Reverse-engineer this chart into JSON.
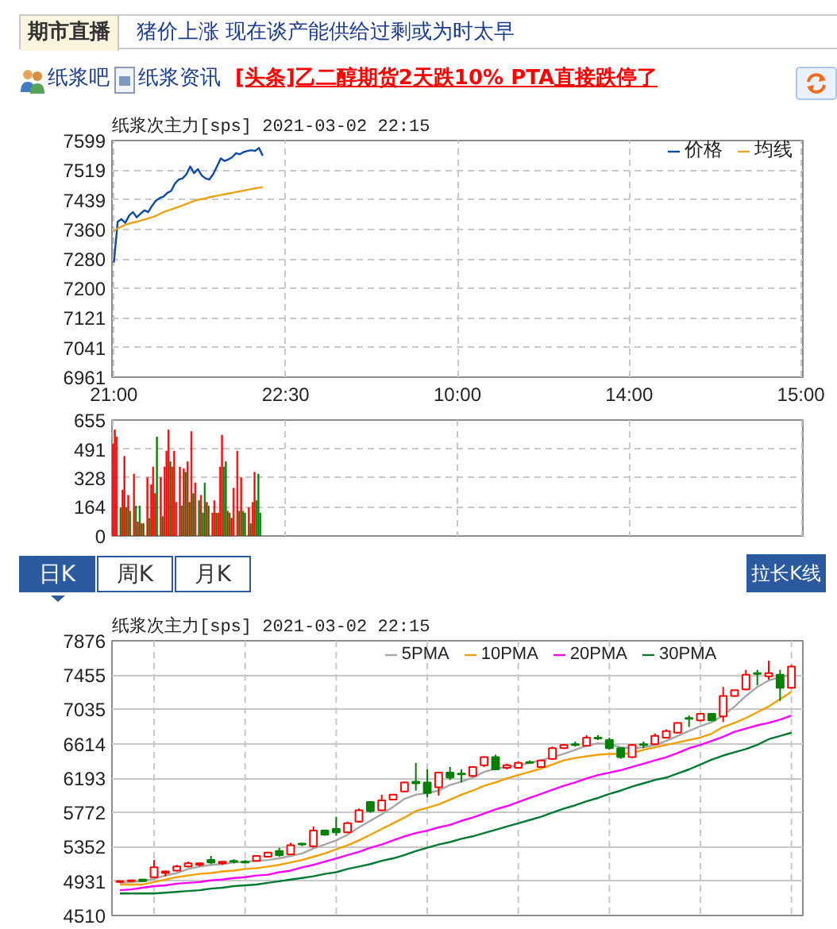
{
  "chart_data": [
    {
      "type": "other",
      "annotations": [
        "期市直播",
        "猪价上涨 现在谈产能供给过剩或为时太早",
        "纸浆吧",
        "纸浆资讯",
        "[头条]乙二醇期货2天跌10% PTA直接跌停了"
      ]
    },
    {
      "type": "line",
      "title": "纸浆次主力[sps] 2021-03-02 22:15",
      "categories": [
        "21:00",
        null,
        null,
        null,
        null,
        null,
        null,
        null,
        null,
        null,
        null,
        null,
        null,
        null,
        null,
        null,
        null,
        null,
        null,
        null,
        null,
        null,
        null,
        null,
        null,
        null,
        null,
        null,
        null,
        null,
        null,
        null,
        null,
        null,
        null,
        null,
        null,
        null,
        null,
        null,
        null,
        null,
        null,
        null,
        null,
        "22:30",
        null,
        null,
        null,
        null,
        null,
        null,
        null,
        null,
        null,
        null,
        null,
        null,
        null,
        null,
        null,
        null,
        null,
        null,
        null,
        null,
        null,
        null,
        null,
        null,
        null,
        null,
        null,
        null,
        null,
        null,
        null,
        null,
        null,
        null,
        null,
        null,
        null,
        null,
        null,
        null,
        null,
        null,
        null,
        null,
        "10:00",
        null,
        null,
        null,
        null,
        null,
        null,
        null,
        null,
        null,
        null,
        null,
        null,
        null,
        null,
        null,
        null,
        null,
        null,
        null,
        null,
        null,
        null,
        null,
        null,
        null,
        null,
        null,
        null,
        null,
        null,
        null,
        null,
        null,
        null,
        null,
        null,
        null,
        null,
        null,
        null,
        null,
        null,
        null,
        null,
        "14:00",
        null,
        null,
        null,
        null,
        null,
        null,
        null,
        null,
        null,
        null,
        null,
        null,
        null,
        null,
        null,
        null,
        null,
        null,
        null,
        null,
        null,
        null,
        null,
        null,
        null,
        null,
        null,
        null,
        null,
        null,
        null,
        null,
        null,
        null,
        null,
        null,
        null,
        null,
        null,
        null,
        null,
        null,
        null,
        null,
        "15:00"
      ],
      "ylim": [
        6961,
        7599
      ],
      "yticks": [
        6961,
        7041,
        7121,
        7200,
        7280,
        7360,
        7439,
        7519,
        7599
      ],
      "grid": true,
      "legend": "top right",
      "series": [
        {
          "name": "价格",
          "color": "#0b4aa8",
          "values": [
            7270,
            7380,
            7387,
            7377,
            7397,
            7406,
            7392,
            7402,
            7411,
            7406,
            7423,
            7437,
            7444,
            7448,
            7458,
            7463,
            7483,
            7494,
            7497,
            7508,
            7529,
            7511,
            7522,
            7505,
            7497,
            7494,
            7508,
            7529,
            7551,
            7544,
            7548,
            7554,
            7565,
            7562,
            7568,
            7571,
            7573,
            7571,
            7579,
            7558,
            null,
            null,
            null,
            null,
            null,
            null,
            null,
            null,
            null,
            null,
            null,
            null,
            null,
            null,
            null,
            null,
            null,
            null,
            null,
            null,
            null,
            null,
            null,
            null,
            null,
            null,
            null,
            null,
            null,
            null,
            null,
            null,
            null,
            null,
            null,
            null,
            null,
            null,
            null,
            null,
            null,
            null,
            null,
            null,
            null,
            null,
            null,
            null,
            null,
            null,
            null,
            null,
            null,
            null,
            null,
            null,
            null,
            null,
            null,
            null,
            null,
            null,
            null,
            null,
            null,
            null,
            null,
            null,
            null,
            null,
            null,
            null,
            null,
            null,
            null,
            null,
            null,
            null,
            null,
            null,
            null,
            null,
            null,
            null,
            null,
            null,
            null,
            null,
            null,
            null,
            null,
            null,
            null,
            null,
            null,
            null,
            null,
            null,
            null,
            null,
            null,
            null,
            null,
            null,
            null,
            null,
            null,
            null,
            null,
            null,
            null,
            null,
            null,
            null,
            null,
            null,
            null,
            null,
            null,
            null,
            null,
            null,
            null,
            null,
            null,
            null,
            null,
            null,
            null,
            null,
            null,
            null,
            null,
            null,
            null,
            null,
            null,
            null,
            null,
            null,
            null
          ]
        },
        {
          "name": "均线",
          "color": "#e8a317",
          "values": [
            7355,
            7362,
            7367,
            7372,
            7375,
            7378,
            7380,
            7383,
            7386,
            7389,
            7392,
            7396,
            7401,
            7406,
            7410,
            7413,
            7417,
            7420,
            7424,
            7428,
            7432,
            7436,
            7439,
            7441,
            7443,
            7446,
            7448,
            7450,
            7452,
            7454,
            7456,
            7458,
            7460,
            7462,
            7464,
            7466,
            7468,
            7470,
            7472,
            7473,
            null,
            null,
            null,
            null,
            null,
            null,
            null,
            null,
            null,
            null,
            null,
            null,
            null,
            null,
            null,
            null,
            null,
            null,
            null,
            null,
            null,
            null,
            null,
            null,
            null,
            null,
            null,
            null,
            null,
            null,
            null,
            null,
            null,
            null,
            null,
            null,
            null,
            null,
            null,
            null,
            null,
            null,
            null,
            null,
            null,
            null,
            null,
            null,
            null,
            null,
            null,
            null,
            null,
            null,
            null,
            null,
            null,
            null,
            null,
            null,
            null,
            null,
            null,
            null,
            null,
            null,
            null,
            null,
            null,
            null,
            null,
            null,
            null,
            null,
            null,
            null,
            null,
            null,
            null,
            null,
            null,
            null,
            null,
            null,
            null,
            null,
            null,
            null,
            null,
            null,
            null,
            null,
            null,
            null,
            null,
            null,
            null,
            null,
            null,
            null,
            null,
            null,
            null,
            null,
            null,
            null,
            null,
            null,
            null,
            null,
            null,
            null,
            null,
            null,
            null,
            null,
            null,
            null,
            null,
            null,
            null,
            null,
            null,
            null,
            null,
            null,
            null,
            null,
            null,
            null,
            null,
            null,
            null,
            null,
            null,
            null,
            null,
            null,
            null,
            null,
            null
          ]
        }
      ]
    },
    {
      "type": "bar",
      "categories": [
        null,
        null,
        null,
        null,
        null,
        null,
        null,
        null,
        null,
        null,
        null,
        null,
        null,
        null,
        null,
        null,
        null,
        null,
        null,
        null,
        null,
        null,
        null,
        null,
        null,
        null,
        null,
        null,
        null,
        null,
        null,
        null,
        null,
        null,
        null,
        null,
        null,
        null,
        null,
        null,
        null,
        null,
        null,
        null,
        null,
        null,
        null,
        null,
        null,
        null,
        null,
        null,
        null,
        null,
        null,
        null,
        null,
        null,
        null,
        null,
        null,
        null,
        null,
        null,
        null,
        null,
        null,
        null,
        null,
        null,
        null,
        null,
        null,
        null,
        null,
        null,
        null,
        null,
        null,
        null,
        null,
        null,
        null,
        null,
        null,
        null,
        null,
        null,
        null,
        null,
        null,
        null,
        null,
        null,
        null,
        null,
        null,
        null,
        null,
        null,
        null,
        null,
        null,
        null,
        null,
        null,
        null,
        null,
        null,
        null,
        null,
        null,
        null,
        null,
        null,
        null,
        null,
        null,
        null,
        null,
        null,
        null,
        null,
        null,
        null,
        null,
        null,
        null,
        null,
        null,
        null,
        null,
        null,
        null,
        null,
        null,
        null,
        null,
        null,
        null,
        null,
        null,
        null,
        null,
        null,
        null,
        null,
        null,
        null,
        null,
        null,
        null,
        null,
        null,
        null,
        null,
        null,
        null,
        null,
        null,
        null,
        null,
        null,
        null,
        null,
        null,
        null,
        null,
        null,
        null,
        null,
        null,
        null,
        null,
        null,
        null,
        null,
        null,
        null,
        null,
        null,
        null,
        null,
        null,
        null,
        null,
        null,
        null,
        null,
        null,
        null,
        null,
        null,
        null,
        null,
        null,
        null,
        null,
        null,
        null,
        null,
        null,
        null,
        null,
        null,
        null,
        null,
        null,
        null,
        null,
        null,
        null,
        null,
        null,
        null,
        null,
        null,
        null,
        null,
        null,
        null,
        null,
        null,
        null,
        null,
        null,
        null,
        null,
        null,
        null,
        null,
        null,
        null,
        null,
        null,
        null,
        null,
        null,
        null,
        null,
        null,
        null,
        null,
        null,
        null,
        null,
        null,
        null,
        null,
        null,
        null,
        null,
        null,
        null,
        null,
        null,
        null,
        null,
        null,
        null,
        null,
        null,
        null,
        null,
        null,
        null,
        null,
        null,
        null,
        null,
        null,
        null,
        null,
        null,
        null,
        null,
        null,
        null,
        null,
        null,
        null,
        null,
        null,
        null,
        null,
        null,
        null,
        null,
        null,
        null,
        null,
        null,
        null,
        null,
        null,
        null,
        null,
        null,
        null,
        null,
        null,
        null,
        null,
        null,
        null,
        null,
        null,
        null,
        null,
        null,
        null,
        null,
        null,
        null,
        null,
        null,
        null,
        null,
        null,
        null,
        null,
        null,
        null,
        null,
        null,
        null,
        null,
        null,
        null,
        null,
        null,
        null,
        null,
        null,
        null,
        null,
        null,
        null,
        null,
        null,
        null,
        null,
        null,
        null,
        null,
        null,
        null,
        null,
        null,
        null,
        null,
        null,
        null,
        null,
        null,
        null,
        null,
        null,
        null,
        null,
        null
      ],
      "ylim": [
        0,
        655
      ],
      "yticks": [
        0,
        164,
        328,
        491,
        655
      ],
      "grid": true,
      "tick_labels": "y",
      "values": [
        520,
        600,
        560,
        null,
        160,
        260,
        450,
        160,
        230,
        140,
        null,
        350,
        170,
        80,
        170,
        70,
        70,
        null,
        330,
        100,
        290,
        390,
        240,
        560,
        null,
        330,
        110,
        390,
        480,
        600,
        420,
        390,
        480,
        190,
        null,
        390,
        170,
        380,
        360,
        420,
        190,
        590,
        240,
        300,
        null,
        200,
        230,
        130,
        300,
        190,
        170,
        null,
        130,
        200,
        130,
        130,
        390,
        570,
        390,
        420,
        140,
        130,
        100,
        270,
        null,
        480,
        140,
        330,
        140,
        130,
        null,
        160,
        70,
        190,
        360,
        200,
        350,
        130,
        null,
        null,
        null,
        null,
        null,
        null,
        null,
        null,
        null,
        null,
        null,
        null,
        null,
        null,
        null,
        null,
        null,
        null,
        null,
        null,
        null,
        null,
        null,
        null,
        null,
        null,
        null,
        null,
        null,
        null,
        null,
        null,
        null,
        null,
        null,
        null,
        null,
        null,
        null,
        null,
        null,
        null,
        null,
        null,
        null,
        null,
        null,
        null,
        null,
        null,
        null,
        null,
        null,
        null,
        null,
        null,
        null,
        null,
        null,
        null,
        null,
        null,
        null,
        null,
        null,
        null,
        null,
        null,
        null,
        null,
        null,
        null,
        null,
        null,
        null,
        null,
        null,
        null,
        null,
        null,
        null,
        null,
        null,
        null,
        null,
        null,
        null,
        null,
        null,
        null,
        null,
        null,
        null,
        null,
        null,
        null,
        null,
        null,
        null,
        null,
        null,
        null,
        null,
        null,
        null,
        null,
        null,
        null,
        null,
        null,
        null,
        null,
        null,
        null,
        null,
        null,
        null,
        null,
        null,
        null,
        null,
        null,
        null,
        null,
        null,
        null,
        null,
        null,
        null,
        null,
        null,
        null,
        null,
        null,
        null,
        null,
        null,
        null,
        null,
        null,
        null,
        null,
        null,
        null,
        null,
        null,
        null,
        null,
        null,
        null,
        null,
        null,
        null,
        null,
        null,
        null,
        null,
        null,
        null,
        null,
        null,
        null,
        null,
        null,
        null,
        null,
        null,
        null,
        null,
        null,
        null,
        null,
        null,
        null,
        null,
        null,
        null,
        null,
        null,
        null,
        null,
        null,
        null,
        null,
        null,
        null,
        null,
        null,
        null,
        null,
        null,
        null,
        null,
        null,
        null,
        null,
        null,
        null,
        null,
        null,
        null,
        null,
        null,
        null,
        null,
        null,
        null,
        null,
        null,
        null,
        null,
        null,
        null,
        null,
        null,
        null,
        null,
        null,
        null,
        null,
        null,
        null,
        null,
        null,
        null,
        null,
        null,
        null,
        null,
        null,
        null,
        null,
        null,
        null,
        null,
        null,
        null,
        null,
        null,
        null,
        null,
        null,
        null,
        null,
        null,
        null,
        null,
        null,
        null,
        null,
        null,
        null,
        null,
        null,
        null,
        null,
        null,
        null,
        null,
        null,
        null,
        null,
        null,
        null,
        null,
        null,
        null,
        null,
        null,
        null,
        null,
        null,
        null,
        null,
        null,
        null,
        null,
        null,
        null,
        null,
        null,
        null,
        null
      ],
      "colors": [
        "#ff0000",
        "#ff0000",
        "#ff0000",
        null,
        "#008000",
        "#ff0000",
        "#ff0000",
        "#008000",
        "#ff0000",
        "#008000",
        null,
        "#ff0000",
        "#008000",
        "#ff0000",
        "#008000",
        "#ff0000",
        "#008000",
        null,
        "#ff0000",
        "#008000",
        "#ff0000",
        "#ff0000",
        "#ff0000",
        "#008000",
        null,
        "#ff0000",
        "#008000",
        "#ff0000",
        "#ff0000",
        "#ff0000",
        "#008000",
        "#ff0000",
        "#ff0000",
        "#ff0000",
        null,
        "#ff0000",
        "#008000",
        "#ff0000",
        "#008000",
        "#ff0000",
        "#008000",
        "#ff0000",
        "#008000",
        "#ff0000",
        null,
        "#008000",
        "#ff0000",
        "#008000",
        "#008000",
        "#ff0000",
        "#008000",
        null,
        "#ff0000",
        "#ff0000",
        "#008000",
        "#ff0000",
        "#ff0000",
        "#ff0000",
        "#008000",
        "#008000",
        "#ff0000",
        "#008000",
        "#ff0000",
        "#ff0000",
        null,
        "#ff0000",
        "#008000",
        "#ff0000",
        "#008000",
        "#008000",
        null,
        "#ff0000",
        "#008000",
        "#ff0000",
        "#ff0000",
        "#008000",
        "#008000",
        "#008000",
        null,
        null,
        null,
        null,
        null,
        null,
        null,
        null,
        null,
        null,
        null,
        null,
        null,
        null,
        null,
        null,
        null,
        null,
        null,
        null,
        null,
        null,
        null,
        null,
        null,
        null,
        null,
        null,
        null,
        null,
        null,
        null,
        null,
        null,
        null,
        null,
        null,
        null,
        null,
        null,
        null,
        null,
        null,
        null,
        null,
        null,
        null,
        null,
        null,
        null,
        null,
        null,
        null,
        null,
        null,
        null,
        null,
        null,
        null,
        null,
        null,
        null,
        null,
        null,
        null,
        null,
        null,
        null,
        null,
        null,
        null,
        null,
        null,
        null,
        null,
        null,
        null,
        null,
        null,
        null,
        null,
        null,
        null,
        null,
        null,
        null,
        null,
        null,
        null,
        null,
        null,
        null,
        null,
        null,
        null,
        null,
        null,
        null,
        null,
        null,
        null,
        null,
        null,
        null,
        null,
        null,
        null,
        null,
        null,
        null,
        null,
        null,
        null,
        null,
        null,
        null,
        null,
        null,
        null,
        null,
        null,
        null,
        null,
        null,
        null,
        null,
        null,
        null,
        null,
        null,
        null,
        null,
        null,
        null,
        null,
        null,
        null,
        null,
        null,
        null,
        null,
        null,
        null,
        null,
        null,
        null,
        null,
        null,
        null,
        null,
        null,
        null,
        null,
        null,
        null,
        null,
        null,
        null,
        null,
        null,
        null,
        null,
        null,
        null,
        null,
        null,
        null,
        null,
        null,
        null,
        null,
        null,
        null,
        null,
        null,
        null,
        null,
        null,
        null,
        null,
        null,
        null,
        null,
        null,
        null,
        null,
        null,
        null,
        null,
        null,
        null,
        null,
        null,
        null,
        null,
        null,
        null,
        null,
        null,
        null,
        null,
        null,
        null,
        null,
        null,
        null,
        null,
        null,
        null,
        null,
        null,
        null,
        null,
        null,
        null,
        null,
        null,
        null,
        null,
        null,
        null,
        null,
        null,
        null,
        null,
        null,
        null,
        null,
        null,
        null,
        null,
        null,
        null,
        null,
        null,
        null,
        null,
        null,
        null,
        null,
        null,
        null,
        null,
        null,
        null,
        null,
        null,
        null,
        null,
        null,
        null,
        null,
        null,
        null,
        null,
        null,
        null,
        null,
        null,
        null,
        null,
        null,
        null,
        null,
        null,
        null,
        null,
        null,
        null,
        null,
        null,
        null,
        null,
        null,
        null,
        null,
        null,
        null,
        null,
        null,
        null,
        null,
        null
      ]
    },
    {
      "type": "other",
      "annotations": [
        "日K",
        "周K",
        "月K",
        "拉长K线"
      ]
    },
    {
      "type": "candlestick",
      "title": "纸浆次主力[sps] 2021-03-02 22:15",
      "categories": [
        null,
        null,
        null,
        null,
        null,
        null,
        null,
        null,
        null,
        null,
        null,
        null,
        null,
        null,
        null,
        null,
        null,
        null,
        null,
        null,
        null,
        null,
        null,
        null,
        null,
        null,
        null,
        null,
        null,
        null,
        null,
        null,
        null,
        null,
        null,
        null,
        null,
        null,
        null,
        null,
        null,
        null,
        null,
        null,
        null,
        null,
        null,
        null,
        null,
        null,
        null,
        null,
        null,
        null,
        null,
        null,
        null,
        null,
        null,
        null
      ],
      "ohlc": [
        [
          4920,
          4940,
          4910,
          4930
        ],
        [
          4930,
          4950,
          4920,
          4940
        ],
        [
          4950,
          4960,
          4930,
          4930
        ],
        [
          4980,
          5190,
          4970,
          5100
        ],
        [
          5030,
          5060,
          4990,
          5050
        ],
        [
          5060,
          5130,
          5050,
          5110
        ],
        [
          5110,
          5170,
          5100,
          5150
        ],
        [
          5130,
          5160,
          5110,
          5150
        ],
        [
          5190,
          5240,
          5140,
          5160
        ],
        [
          5150,
          5170,
          5130,
          5170
        ],
        [
          5180,
          5200,
          5150,
          5170
        ],
        [
          5170,
          5190,
          5150,
          5160
        ],
        [
          5180,
          5250,
          5170,
          5240
        ],
        [
          5230,
          5290,
          5220,
          5280
        ],
        [
          5300,
          5340,
          5230,
          5250
        ],
        [
          5260,
          5400,
          5250,
          5370
        ],
        [
          5390,
          5400,
          5360,
          5380
        ],
        [
          5360,
          5600,
          5340,
          5550
        ],
        [
          5550,
          5560,
          5490,
          5500
        ],
        [
          5570,
          5720,
          5490,
          5530
        ],
        [
          5530,
          5660,
          5520,
          5640
        ],
        [
          5660,
          5820,
          5650,
          5800
        ],
        [
          5900,
          5900,
          5770,
          5790
        ],
        [
          5800,
          5990,
          5790,
          5920
        ],
        [
          5930,
          5990,
          5920,
          5990
        ],
        [
          6030,
          6150,
          6020,
          6140
        ],
        [
          6150,
          6380,
          6040,
          6130
        ],
        [
          6140,
          6300,
          5960,
          6010
        ],
        [
          6080,
          6270,
          5980,
          6260
        ],
        [
          6260,
          6330,
          6170,
          6200
        ],
        [
          6250,
          6300,
          6140,
          6240
        ],
        [
          6220,
          6340,
          6210,
          6330
        ],
        [
          6350,
          6460,
          6330,
          6450
        ],
        [
          6450,
          6480,
          6290,
          6300
        ],
        [
          6320,
          6370,
          6300,
          6350
        ],
        [
          6320,
          6400,
          6310,
          6380
        ],
        [
          6390,
          6410,
          6370,
          6380
        ],
        [
          6330,
          6420,
          6320,
          6410
        ],
        [
          6430,
          6580,
          6420,
          6560
        ],
        [
          6560,
          6610,
          6550,
          6600
        ],
        [
          6610,
          6640,
          6580,
          6600
        ],
        [
          6590,
          6720,
          6580,
          6690
        ],
        [
          6690,
          6720,
          6660,
          6680
        ],
        [
          6660,
          6690,
          6540,
          6560
        ],
        [
          6560,
          6570,
          6430,
          6450
        ],
        [
          6450,
          6610,
          6440,
          6600
        ],
        [
          6610,
          6640,
          6560,
          6600
        ],
        [
          6610,
          6740,
          6600,
          6710
        ],
        [
          6690,
          6790,
          6680,
          6770
        ],
        [
          6750,
          6880,
          6740,
          6870
        ],
        [
          6930,
          6960,
          6820,
          6920
        ],
        [
          6900,
          6990,
          6890,
          6980
        ],
        [
          6980,
          6990,
          6890,
          6900
        ],
        [
          6950,
          7310,
          6880,
          7200
        ],
        [
          7200,
          7270,
          7190,
          7270
        ],
        [
          7280,
          7520,
          7270,
          7460
        ],
        [
          7480,
          7520,
          7330,
          7470
        ],
        [
          7440,
          7630,
          7400,
          7480
        ],
        [
          7460,
          7520,
          7140,
          7300
        ],
        [
          7300,
          7580,
          7290,
          7560
        ]
      ],
      "ylim": [
        4510,
        7876
      ],
      "yticks": [
        4510,
        4931,
        5352,
        5772,
        6193,
        6614,
        7035,
        7455,
        7876
      ],
      "grid": true,
      "tick_labels": "y",
      "legend": "top right",
      "series": [
        {
          "name": "5PMA",
          "type": "line",
          "color": "#a6a6a6",
          "values": [
            4910,
            4920,
            4930,
            4960,
            5000,
            5030,
            5080,
            5110,
            5130,
            5140,
            5160,
            5170,
            5180,
            5190,
            5210,
            5240,
            5270,
            5330,
            5380,
            5430,
            5500,
            5590,
            5670,
            5750,
            5840,
            5940,
            5990,
            6010,
            6040,
            6110,
            6150,
            6200,
            6270,
            6310,
            6330,
            6350,
            6380,
            6410,
            6450,
            6490,
            6540,
            6590,
            6620,
            6610,
            6570,
            6560,
            6570,
            6600,
            6650,
            6710,
            6770,
            6830,
            6880,
            6960,
            7070,
            7200,
            7310,
            7390,
            7430,
            7460
          ]
        },
        {
          "name": "10PMA",
          "type": "line",
          "color": "#f0a000",
          "values": [
            4890,
            4890,
            4890,
            4920,
            4950,
            4980,
            5000,
            5020,
            5030,
            5050,
            5060,
            5080,
            5090,
            5110,
            5130,
            5160,
            5190,
            5230,
            5270,
            5320,
            5370,
            5430,
            5500,
            5570,
            5640,
            5710,
            5790,
            5830,
            5870,
            5930,
            5990,
            6040,
            6100,
            6140,
            6190,
            6230,
            6270,
            6310,
            6360,
            6410,
            6440,
            6460,
            6480,
            6490,
            6490,
            6500,
            6540,
            6570,
            6600,
            6630,
            6660,
            6690,
            6740,
            6820,
            6870,
            6930,
            7000,
            7070,
            7160,
            7250
          ]
        },
        {
          "name": "20PMA",
          "type": "line",
          "color": "#ff00ff",
          "values": [
            4820,
            4830,
            4850,
            4870,
            4880,
            4900,
            4910,
            4920,
            4940,
            4950,
            4970,
            4980,
            5000,
            5010,
            5040,
            5060,
            5100,
            5130,
            5170,
            5210,
            5250,
            5290,
            5340,
            5380,
            5430,
            5480,
            5520,
            5550,
            5590,
            5620,
            5670,
            5710,
            5760,
            5810,
            5850,
            5900,
            5950,
            6000,
            6050,
            6100,
            6140,
            6190,
            6230,
            6260,
            6290,
            6330,
            6370,
            6410,
            6450,
            6500,
            6560,
            6600,
            6650,
            6700,
            6760,
            6800,
            6840,
            6870,
            6910,
            6960
          ]
        },
        {
          "name": "30PMA",
          "type": "line",
          "color": "#007a33",
          "values": [
            4780,
            4780,
            4780,
            4780,
            4790,
            4800,
            4810,
            4820,
            4840,
            4850,
            4870,
            4880,
            4890,
            4910,
            4930,
            4950,
            4970,
            4990,
            5020,
            5040,
            5080,
            5110,
            5140,
            5180,
            5210,
            5250,
            5300,
            5340,
            5380,
            5410,
            5450,
            5480,
            5520,
            5560,
            5600,
            5640,
            5680,
            5720,
            5770,
            5820,
            5860,
            5910,
            5950,
            6000,
            6040,
            6090,
            6130,
            6170,
            6200,
            6250,
            6300,
            6360,
            6420,
            6470,
            6510,
            6550,
            6600,
            6670,
            6710,
            6750
          ]
        }
      ]
    }
  ]
}
